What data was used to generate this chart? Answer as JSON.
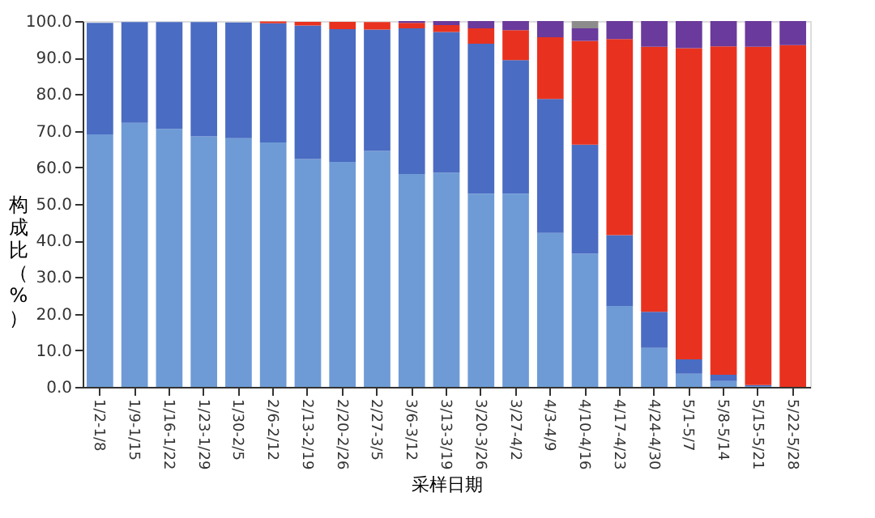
{
  "chart_data": {
    "type": "bar",
    "stacked": true,
    "xlabel": "采样日期",
    "ylabel": "构成比（%）",
    "categories": [
      "1/2-1/8",
      "1/9-1/15",
      "1/16-1/22",
      "1/23-1/29",
      "1/30-2/5",
      "2/6-2/12",
      "2/13-2/19",
      "2/20-2/26",
      "2/27-3/5",
      "3/6-3/12",
      "3/13-3/19",
      "3/20-3/26",
      "3/27-4/2",
      "4/3-4/9",
      "4/10-4/16",
      "4/17-4/23",
      "4/24-4/30",
      "5/1-5/7",
      "5/8-5/14",
      "5/15-5/21",
      "5/22-5/28"
    ],
    "series": [
      {
        "color": "#6e9bd6",
        "values": [
          69,
          72.2,
          70.5,
          68.5,
          68,
          66.8,
          62.3,
          61.5,
          64.5,
          58.2,
          58.5,
          52.8,
          52.8,
          42.1,
          36.4,
          22.1,
          10.7,
          3.6,
          1.6,
          0.2,
          0
        ]
      },
      {
        "color": "#4a6cc2",
        "values": [
          30.5,
          27.5,
          29.2,
          31.2,
          31.6,
          32.6,
          36.5,
          36.3,
          33.2,
          39.8,
          38.5,
          41,
          36.5,
          36.6,
          29.8,
          19.4,
          9.8,
          3.9,
          1.7,
          0.3,
          0
        ]
      },
      {
        "color": "#e8321f",
        "values": [
          null,
          null,
          null,
          null,
          null,
          0.5,
          1,
          2,
          2,
          1.5,
          1.9,
          4.2,
          8.2,
          16.9,
          28.4,
          53.6,
          72.5,
          85.1,
          89.8,
          92.5,
          93.4
        ]
      },
      {
        "color": "#6a3a9c",
        "values": [
          null,
          null,
          null,
          null,
          null,
          null,
          null,
          null,
          null,
          0.5,
          1.1,
          2,
          2.5,
          4.4,
          3.4,
          4.9,
          7,
          7.4,
          6.9,
          7,
          6.6
        ]
      },
      {
        "color": "#8c8c8c",
        "values": [
          0,
          0,
          0,
          0,
          0,
          0,
          0,
          0,
          0,
          0,
          0,
          0,
          0,
          0,
          2,
          0,
          0,
          0,
          0,
          0,
          0
        ]
      }
    ],
    "ylim": [
      0,
      100
    ],
    "yticks": [
      {
        "value": 0,
        "label": "0.0"
      },
      {
        "value": 10,
        "label": "10.0"
      },
      {
        "value": 20,
        "label": "20.0"
      },
      {
        "value": 30,
        "label": "30.0"
      },
      {
        "value": 40,
        "label": "40.0"
      },
      {
        "value": 50,
        "label": "50.0"
      },
      {
        "value": 60,
        "label": "60.0"
      },
      {
        "value": 70,
        "label": "70.0"
      },
      {
        "value": 80,
        "label": "80.0"
      },
      {
        "value": 90,
        "label": "90.0"
      },
      {
        "value": 100,
        "label": "100.0"
      }
    ],
    "grid": false,
    "legend": false
  }
}
